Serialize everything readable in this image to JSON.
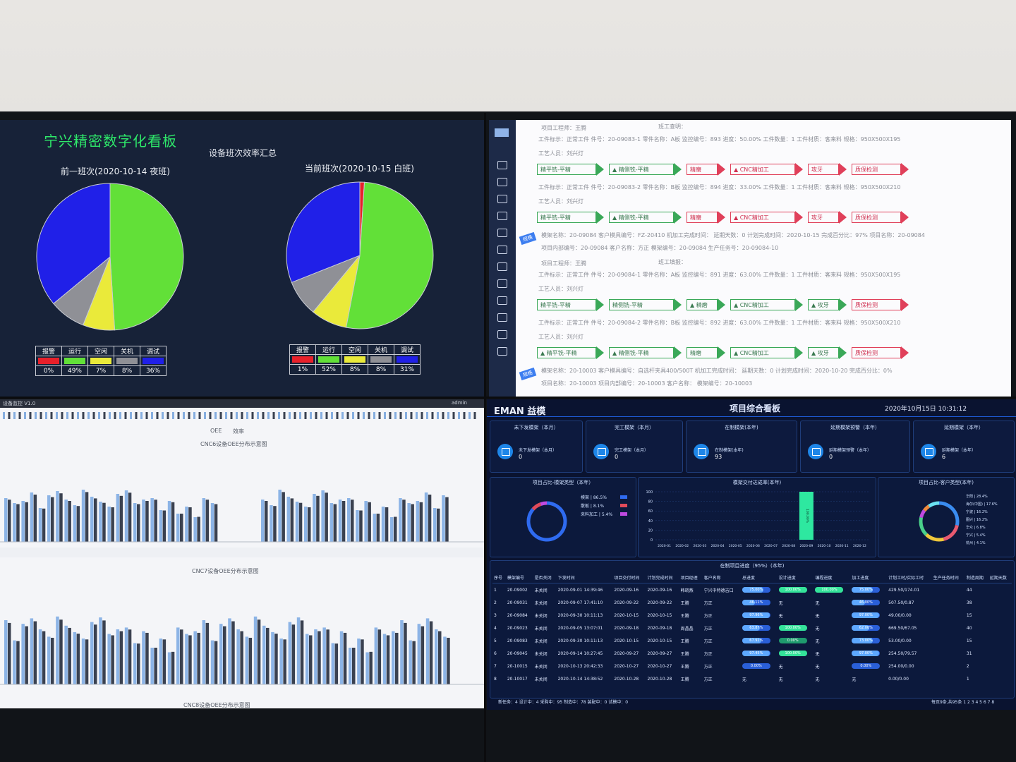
{
  "efficiency_board": {
    "title": "宁兴精密数字化看板",
    "subtitle": "设备班次效率汇总",
    "prev_shift": "前一班次(2020-10-14 夜班)",
    "curr_shift": "当前班次(2020-10-15 白班)",
    "legend_labels": [
      "报警",
      "运行",
      "空闲",
      "关机",
      "调试"
    ],
    "colors": {
      "报警": "#e8202a",
      "运行": "#62e038",
      "空闲": "#eaea3a",
      "关机": "#8f9096",
      "调试": "#2020e8"
    },
    "prev_percents": [
      "0%",
      "49%",
      "7%",
      "8%",
      "36%"
    ],
    "curr_percents": [
      "1%",
      "52%",
      "8%",
      "8%",
      "31%"
    ]
  },
  "chart_data": [
    {
      "type": "pie",
      "title": "前一班次(2020-10-14 夜班)",
      "categories": [
        "报警",
        "运行",
        "空闲",
        "关机",
        "调试"
      ],
      "values": [
        0,
        49,
        7,
        8,
        36
      ]
    },
    {
      "type": "pie",
      "title": "当前班次(2020-10-15 白班)",
      "categories": [
        "报警",
        "运行",
        "空闲",
        "关机",
        "调试"
      ],
      "values": [
        1,
        52,
        8,
        8,
        31
      ]
    }
  ],
  "process_board": {
    "cards": [
      {
        "header": "项目工程师：王腾",
        "header2": "班工查明：",
        "tag": "规格",
        "rows": [
          {
            "line": "工件标示：正常工件    件号：20-09083-1    零件名称：A板    监控编号：893    进度：50.00%    工件数量：1    工件材质：客来料    规格：950X500X195",
            "person": "工艺人员：刘兴灯",
            "steps": [
              {
                "t": "精平铣-平精",
                "c": "g"
              },
              {
                "t": "▲ 精侧铣-平精",
                "c": "g"
              },
              {
                "t": "精磨",
                "c": "r"
              },
              {
                "t": "▲ CNC精加工",
                "c": "r"
              },
              {
                "t": "攻牙",
                "c": "r"
              },
              {
                "t": "质保检测",
                "c": "r"
              }
            ]
          },
          {
            "line": "工件标示：正常工件    件号：20-09083-2    零件名称：B板    监控编号：894    进度：33.00%    工件数量：1    工件材质：客来料    规格：950X500X210",
            "person": "工艺人员：刘兴灯",
            "steps": [
              {
                "t": "精平铣-平精",
                "c": "g"
              },
              {
                "t": "▲ 精侧铣-平精",
                "c": "g"
              },
              {
                "t": "精磨",
                "c": "r"
              },
              {
                "t": "▲ CNC精加工",
                "c": "r"
              },
              {
                "t": "攻牙",
                "c": "r"
              },
              {
                "t": "质保检测",
                "c": "r"
              }
            ]
          }
        ],
        "footer1": "模架名称：20-09084    客户模具编号：FZ-20410    机加工完成时间：    延期天数：0    计划完成时间：2020-10-15    完成百分比：97%    项目名称：20-09084",
        "footer2": "项目内部编号：20-09084    客户名称：方正                                            模架编号：20-09084                            生产任务号：20-09084-10"
      },
      {
        "header": "项目工程师：王腾",
        "header2": "班工填报：",
        "tag": "规格",
        "rows": [
          {
            "line": "工件标示：正常工件    件号：20-09084-1    零件名称：A板    监控编号：891    进度：63.00%    工件数量：1    工件材质：客来料    规格：950X500X195",
            "person": "工艺人员：刘兴灯",
            "steps": [
              {
                "t": "精平铣-平精",
                "c": "g"
              },
              {
                "t": "精侧铣-平精",
                "c": "g"
              },
              {
                "t": "▲ 精磨",
                "c": "g"
              },
              {
                "t": "▲ CNC精加工",
                "c": "g"
              },
              {
                "t": "▲ 攻牙",
                "c": "g"
              },
              {
                "t": "质保检测",
                "c": "r"
              }
            ]
          },
          {
            "line": "工件标示：正常工件    件号：20-09084-2    零件名称：B板    监控编号：892    进度：63.00%    工件数量：1    工件材质：客来料    规格：950X500X210",
            "person": "工艺人员：刘兴灯",
            "steps": [
              {
                "t": "▲ 精平铣-平精",
                "c": "g"
              },
              {
                "t": "▲ 精侧铣-平精",
                "c": "g"
              },
              {
                "t": "精磨",
                "c": "g"
              },
              {
                "t": "▲ CNC精加工",
                "c": "g"
              },
              {
                "t": "▲ 攻牙",
                "c": "g"
              },
              {
                "t": "质保检测",
                "c": "r"
              }
            ]
          }
        ],
        "footer1": "模架名称：20-10003    客户模具编号：自选杆夹具400/500T    机加工完成时间：    延期天数：0    计划完成时间：2020-10-20    完成百分比：0%",
        "footer2": "项目名称：20-10003    项目内部编号：20-10003    客户名称：                    模架编号：20-10003"
      }
    ]
  },
  "oee_board": {
    "header_left": "设备监控 V1.0",
    "user": "admin",
    "chart1_title": "CNC6设备OEE分布示意图",
    "chart2_title": "CNC7设备OEE分布示意图",
    "chart3_title": "CNC8设备OEE分布示意图",
    "legend": [
      "OEE",
      "效率"
    ]
  },
  "project_board": {
    "logo": "EMAN 益模",
    "title": "项目综合看板",
    "datetime": "2020年10月15日 10:31:12",
    "kpis": [
      {
        "title": "未下发模架（本月）",
        "label": "未下发模架（本月）",
        "value": "0"
      },
      {
        "title": "完工模架（本月）",
        "label": "完工模架（本月）",
        "value": "0"
      },
      {
        "title": "在制模架(本年)",
        "label": "在制模架(本年)",
        "value": "93"
      },
      {
        "title": "延期模架预警（本年）",
        "label": "延期模架预警（本年）",
        "value": "0"
      },
      {
        "title": "延期模架（本年）",
        "label": "延期模架（本年）",
        "value": "6"
      }
    ],
    "donut1_title": "项目占比-模架类型（本年）",
    "donut1_legend": [
      {
        "name": "模架",
        "pct": "86.5%",
        "color": "#2f6bf0"
      },
      {
        "name": "散板",
        "pct": "8.1%",
        "color": "#e04a5a"
      },
      {
        "name": "来料加工",
        "pct": "5.4%",
        "color": "#c04ae0"
      }
    ],
    "bar_title": "模架交付达成率(本年)",
    "bar_chart": {
      "type": "bar",
      "categories": [
        "2020-01",
        "2020-02",
        "2020-03",
        "2020-04",
        "2020-05",
        "2020-06",
        "2020-07",
        "2020-08",
        "2020-09",
        "2020-10",
        "2020-11",
        "2020-12"
      ],
      "values": [
        0,
        0,
        0,
        0,
        0,
        0,
        0,
        0,
        100,
        0,
        0,
        0
      ],
      "yticks": [
        "100",
        "80",
        "60",
        "40",
        "20",
        "0"
      ],
      "bar_label": "100.00%"
    },
    "donut2_title": "项目占比-客户类型(本年)",
    "donut2_legend": [
      "华阳 | 28.4%",
      "海尔(中国) | 17.6%",
      "宁波 | 16.2%",
      "图兴 | 16.2%",
      "华众 | 6.8%",
      "宁兴 | 5.4%",
      "杭州 | 4.1%"
    ],
    "table_title": "在制项目进度（95%）(本年)",
    "columns": [
      "序号",
      "模架编号",
      "是否关闭",
      "下发时间",
      "项目交付时间",
      "计划完成时间",
      "项目经理",
      "客户名称",
      "总进度",
      "设计进度",
      "编程进度",
      "加工进度",
      "计划工时/实际工时",
      "生产任务时间",
      "制造周期",
      "延期天数"
    ],
    "rows": [
      [
        "1",
        "20-09002",
        "未关闭",
        "2020-09-01 14:39:46",
        "2020-09-16",
        "2020-09-16",
        "韩晓燕",
        "宁兴中特德吉口",
        "75.00%",
        "100.00%",
        "100.00%",
        "75.00%",
        "429.50/174.01",
        "",
        "44",
        ""
      ],
      [
        "2",
        "20-09031",
        "未关闭",
        "2020-09-07 17:41:10",
        "2020-09-22",
        "2020-09-22",
        "王腾",
        "方正",
        "46.11%",
        "无",
        "无",
        "46.00%",
        "507.50/0.87",
        "",
        "38",
        ""
      ],
      [
        "3",
        "20-09084",
        "未关闭",
        "2020-09-30 10:11:13",
        "2020-10-15",
        "2020-10-15",
        "王腾",
        "方正",
        "97.96%",
        "无",
        "无",
        "97.00%",
        "49.00/0.00",
        "",
        "15",
        ""
      ],
      [
        "4",
        "20-09023",
        "未关闭",
        "2020-09-05 13:07:01",
        "2020-09-18",
        "2020-09-18",
        "周晶晶",
        "方正",
        "63.87%",
        "100.00%",
        "无",
        "62.00%",
        "669.50/67.05",
        "",
        "40",
        ""
      ],
      [
        "5",
        "20-09083",
        "未关闭",
        "2020-09-30 10:11:13",
        "2020-10-15",
        "2020-10-15",
        "王腾",
        "方正",
        "67.92%",
        "0.00%",
        "无",
        "73.00%",
        "53.00/0.00",
        "",
        "15",
        ""
      ],
      [
        "6",
        "20-09045",
        "未关闭",
        "2020-09-14 10:27:45",
        "2020-09-27",
        "2020-09-27",
        "王腾",
        "方正",
        "97.45%",
        "100.00%",
        "无",
        "97.00%",
        "254.50/79.57",
        "",
        "31",
        ""
      ],
      [
        "7",
        "20-10015",
        "未关闭",
        "2020-10-13 20:42:33",
        "2020-10-27",
        "2020-10-27",
        "王腾",
        "方正",
        "0.00%",
        "无",
        "无",
        "0.00%",
        "254.00/0.00",
        "",
        "2",
        ""
      ],
      [
        "8",
        "20-10017",
        "未关闭",
        "2020-10-14 14:38:52",
        "2020-10-28",
        "2020-10-28",
        "王腾",
        "方正",
        "无",
        "无",
        "无",
        "无",
        "0.00/0.00",
        "",
        "1",
        ""
      ]
    ],
    "footer": "新任务：4  设计中：4  采购中：95  制造中：78  装配中：0  试模中：0",
    "pager": "每页9条,共95条    1 2 3 4 5 6 7 8"
  }
}
